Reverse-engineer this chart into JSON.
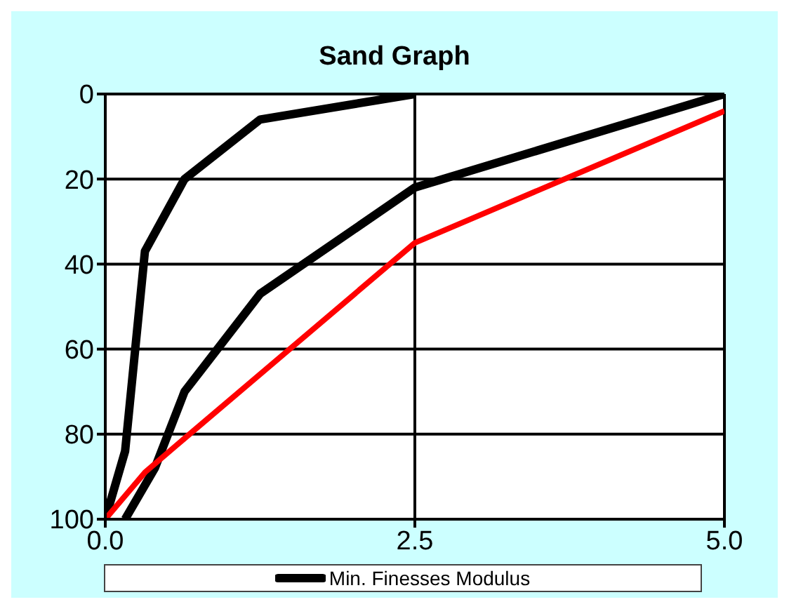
{
  "chart_data": {
    "type": "line",
    "title": "Sand Graph",
    "series": [
      {
        "name": "Min. Finesses Modulus",
        "color": "#000000",
        "x": [
          0,
          0.16,
          0.32,
          0.64,
          1.25,
          2.5
        ],
        "values": [
          100,
          84,
          37,
          20,
          6,
          0
        ]
      },
      {
        "color": "#000000",
        "x": [
          0.16,
          0.4,
          0.64,
          1.25,
          2.5,
          5.0
        ],
        "values": [
          100,
          88,
          70,
          47,
          22,
          0
        ]
      },
      {
        "color": "#ff0000",
        "x": [
          0,
          0.32,
          0.64,
          2.5,
          5.0
        ],
        "values": [
          100,
          89,
          81,
          35,
          4
        ]
      }
    ],
    "xlim": [
      0,
      5.0
    ],
    "xticks": [
      {
        "value": 0,
        "label": "0.0"
      },
      2.5,
      {
        "value": 5,
        "label": "5.0"
      }
    ],
    "ylim": [
      100,
      0
    ],
    "yticks": [
      0,
      20,
      40,
      60,
      80,
      100
    ],
    "grid": true,
    "legend": "bottom",
    "marker": "none",
    "line_style": "solid"
  }
}
